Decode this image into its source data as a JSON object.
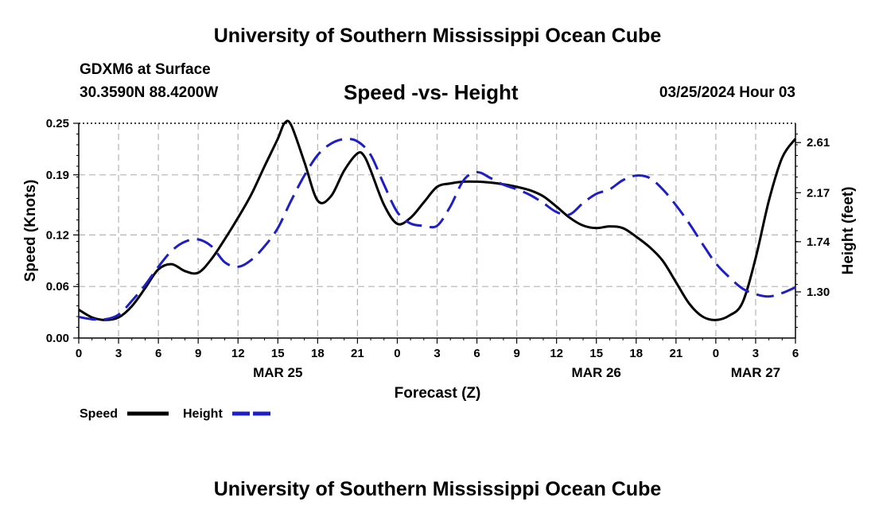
{
  "page": {
    "title_top": "University of Southern Mississippi Ocean Cube",
    "title_bottom": "University of Southern Mississippi Ocean Cube",
    "station": "GDXM6 at Surface",
    "coords": "30.3590N  88.4200W",
    "subtitle": "Speed -vs- Height",
    "datetime": "03/25/2024 Hour 03"
  },
  "colors": {
    "speed": "#000000",
    "height": "#1e1ec8",
    "grid": "#b4b4b4"
  },
  "chart_data": {
    "type": "line",
    "title": "Speed -vs- Height",
    "xlabel": "Forecast (Z)",
    "ylabel_left": "Speed (Knots)",
    "ylabel_right": "Height (feet)",
    "x_range_hours": [
      0,
      54
    ],
    "x_tick_labels": [
      "0",
      "3",
      "6",
      "9",
      "12",
      "15",
      "18",
      "21",
      "0",
      "3",
      "6",
      "9",
      "12",
      "15",
      "18",
      "21",
      "0",
      "3",
      "6"
    ],
    "date_labels": [
      {
        "hour": 15,
        "label": "MAR 25"
      },
      {
        "hour": 39,
        "label": "MAR 26"
      },
      {
        "hour": 51,
        "label": "MAR 27"
      }
    ],
    "y_left": {
      "range": [
        0,
        0.25
      ],
      "ticks": [
        "0.00",
        "0.06",
        "0.12",
        "0.19",
        "0.25"
      ]
    },
    "y_right": {
      "range": [
        0.895,
        2.779
      ],
      "ticks": [
        {
          "value": 1.3,
          "label": "1.30"
        },
        {
          "value": 1.74,
          "label": "1.74"
        },
        {
          "value": 2.17,
          "label": "2.17"
        },
        {
          "value": 2.61,
          "label": "2.61"
        }
      ]
    },
    "legend": [
      {
        "name": "Speed",
        "style": "solid"
      },
      {
        "name": "Height",
        "style": "dashed"
      }
    ],
    "series": [
      {
        "name": "Speed",
        "axis": "left",
        "style": "solid",
        "x": [
          0,
          1,
          2,
          3,
          4,
          5,
          6,
          7,
          8,
          9,
          10,
          11,
          12,
          13,
          14,
          15,
          15.5,
          16,
          17,
          18,
          19,
          20,
          21,
          21.5,
          22,
          23,
          24,
          25,
          26,
          27,
          28,
          29,
          30,
          31,
          32,
          33,
          34,
          35,
          36,
          37,
          38,
          39,
          40,
          41,
          42,
          43,
          44,
          45,
          46,
          47,
          48,
          49,
          50,
          51,
          52,
          53,
          54
        ],
        "values": [
          0.033,
          0.024,
          0.021,
          0.024,
          0.037,
          0.058,
          0.08,
          0.086,
          0.078,
          0.076,
          0.092,
          0.115,
          0.14,
          0.167,
          0.2,
          0.232,
          0.25,
          0.248,
          0.205,
          0.16,
          0.165,
          0.195,
          0.215,
          0.212,
          0.195,
          0.155,
          0.133,
          0.14,
          0.158,
          0.176,
          0.18,
          0.182,
          0.182,
          0.181,
          0.179,
          0.176,
          0.172,
          0.165,
          0.153,
          0.14,
          0.131,
          0.128,
          0.13,
          0.128,
          0.118,
          0.106,
          0.09,
          0.065,
          0.04,
          0.025,
          0.021,
          0.026,
          0.041,
          0.093,
          0.16,
          0.21,
          0.232
        ]
      },
      {
        "name": "Height",
        "axis": "right",
        "style": "dashed",
        "x": [
          0,
          1,
          2,
          3,
          4,
          5,
          6,
          7,
          8,
          9,
          10,
          11,
          12,
          13,
          14,
          15,
          16,
          17,
          18,
          19,
          20,
          21,
          22,
          23,
          24,
          25,
          26,
          27,
          28,
          29,
          30,
          31,
          32,
          33,
          34,
          35,
          36,
          37,
          38,
          39,
          40,
          41,
          42,
          43,
          44,
          45,
          46,
          47,
          48,
          49,
          50,
          51,
          52,
          53,
          54
        ],
        "values": [
          1.08,
          1.06,
          1.06,
          1.1,
          1.22,
          1.36,
          1.52,
          1.66,
          1.74,
          1.76,
          1.7,
          1.56,
          1.52,
          1.58,
          1.7,
          1.86,
          2.1,
          2.32,
          2.5,
          2.6,
          2.64,
          2.62,
          2.5,
          2.24,
          2.0,
          1.9,
          1.88,
          1.88,
          2.05,
          2.28,
          2.35,
          2.3,
          2.24,
          2.2,
          2.15,
          2.08,
          2.0,
          1.98,
          2.08,
          2.16,
          2.2,
          2.28,
          2.32,
          2.3,
          2.2,
          2.06,
          1.9,
          1.72,
          1.55,
          1.43,
          1.33,
          1.28,
          1.26,
          1.29,
          1.34
        ]
      }
    ]
  }
}
